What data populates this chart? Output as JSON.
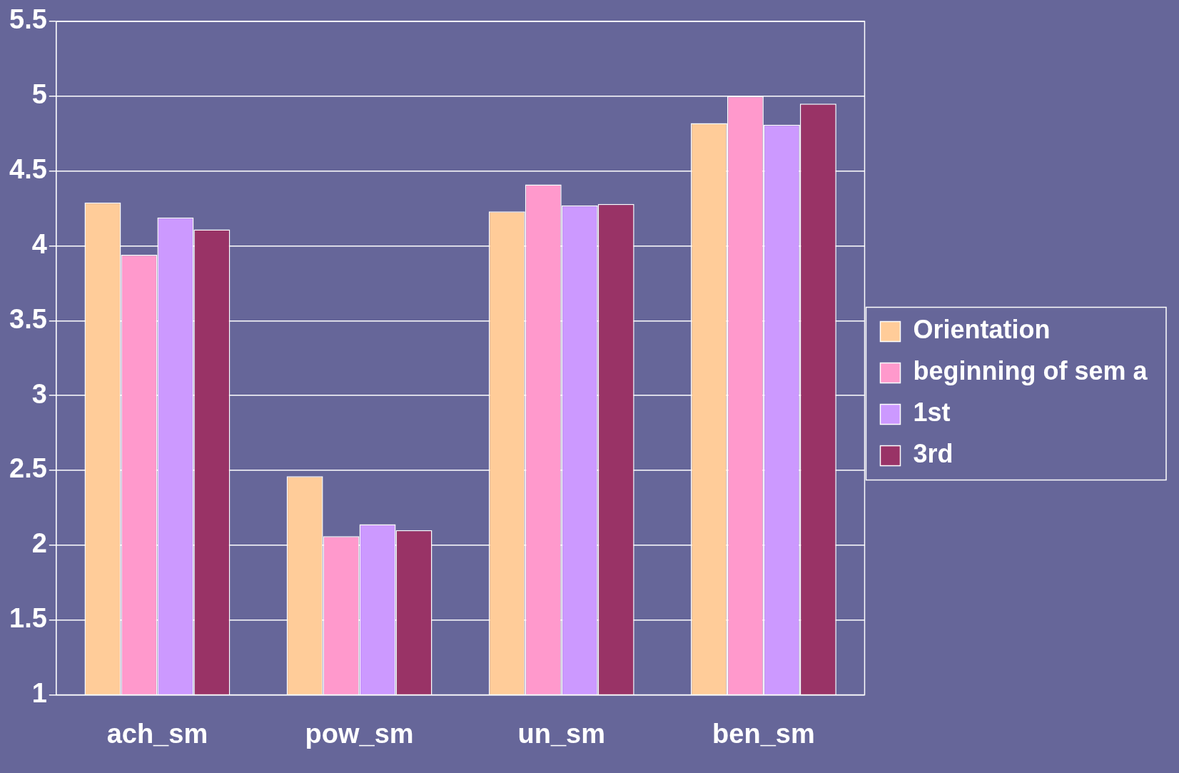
{
  "chart_data": {
    "type": "bar",
    "categories": [
      "ach_sm",
      "pow_sm",
      "un_sm",
      "ben_sm"
    ],
    "series": [
      {
        "name": "Orientation",
        "color": "#ffcc99",
        "values": [
          4.29,
          2.46,
          4.23,
          4.82
        ]
      },
      {
        "name": "beginning of sem a",
        "color": "#ff99cc",
        "values": [
          3.94,
          2.06,
          4.41,
          5.0
        ]
      },
      {
        "name": "1st",
        "color": "#cc99ff",
        "values": [
          4.19,
          2.14,
          4.27,
          4.81
        ]
      },
      {
        "name": "3rd",
        "color": "#993366",
        "values": [
          4.11,
          2.1,
          4.28,
          4.95
        ]
      }
    ],
    "ylim": [
      1,
      5.5
    ],
    "yticks": [
      1,
      1.5,
      2,
      2.5,
      3,
      3.5,
      4,
      4.5,
      5,
      5.5
    ],
    "grid": "y",
    "legend": "right"
  }
}
